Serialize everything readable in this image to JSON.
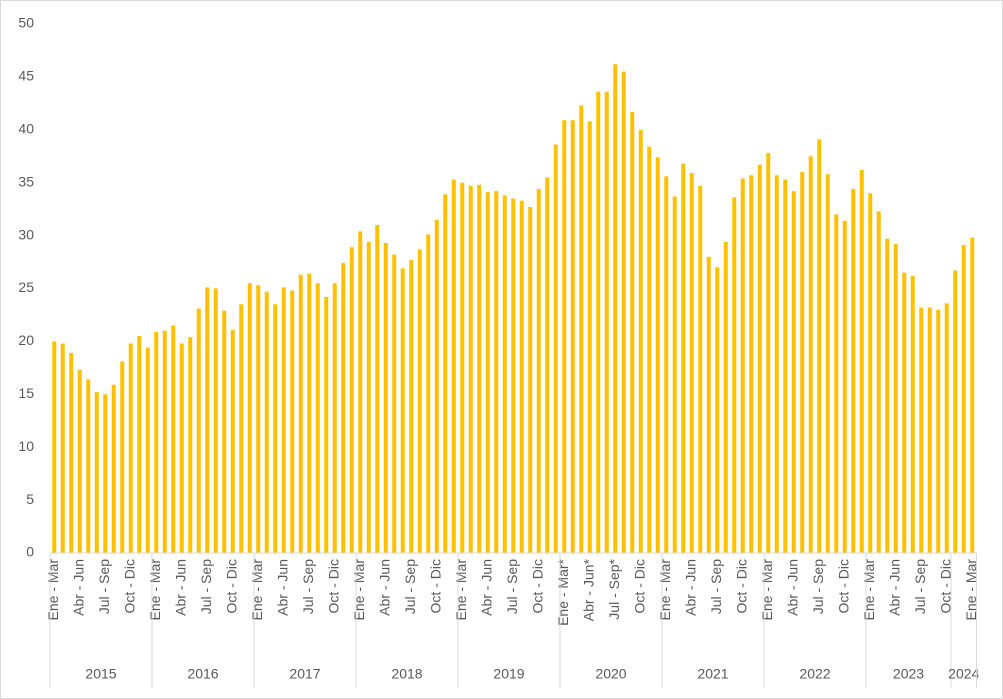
{
  "chart_data": {
    "type": "bar",
    "color": "#FFC000",
    "ylim": [
      0,
      50
    ],
    "yticks": [
      0,
      5,
      10,
      15,
      20,
      25,
      30,
      35,
      40,
      45,
      50
    ],
    "categories": [
      "Ene - Mar",
      null,
      null,
      "Abr - Jun",
      null,
      null,
      "Jul - Sep",
      null,
      null,
      "Oct - Dic",
      null,
      null,
      "Ene - Mar",
      null,
      null,
      "Abr - Jun",
      null,
      null,
      "Jul - Sep",
      null,
      null,
      "Oct - Dic",
      null,
      null,
      "Ene - Mar",
      null,
      null,
      "Abr - Jun",
      null,
      null,
      "Jul - Sep",
      null,
      null,
      "Oct - Dic",
      null,
      null,
      "Ene - Mar",
      null,
      null,
      "Abr - Jun",
      null,
      null,
      "Jul - Sep",
      null,
      null,
      "Oct - Dic",
      null,
      null,
      "Ene - Mar",
      null,
      null,
      "Abr - Jun",
      null,
      null,
      "Jul - Sep",
      null,
      null,
      "Oct - Dic",
      null,
      null,
      "Ene - Mar*",
      null,
      null,
      "Abr - Jun*",
      null,
      null,
      "Jul - Sep*",
      null,
      null,
      "Oct - Dic",
      null,
      null,
      "Ene - Mar",
      null,
      null,
      "Abr - Jun",
      null,
      null,
      "Jul - Sep",
      null,
      null,
      "Oct - Dic",
      null,
      null,
      "Ene - Mar",
      null,
      null,
      "Abr - Jun",
      null,
      null,
      "Jul - Sep",
      null,
      null,
      "Oct - Dic",
      null,
      null,
      "Ene - Mar",
      null,
      null,
      "Abr - Jun",
      null,
      null,
      "Jul - Sep",
      null,
      null,
      "Oct - Dic",
      null,
      null,
      "Ene - Mar"
    ],
    "values": [
      20,
      19.8,
      18.9,
      17.3,
      16.4,
      15.2,
      15.0,
      15.9,
      18.1,
      19.8,
      20.5,
      19.4,
      20.9,
      21.0,
      21.5,
      19.8,
      20.4,
      23.1,
      25.1,
      25.0,
      22.9,
      21.1,
      23.5,
      25.5,
      25.3,
      24.7,
      23.5,
      25.1,
      24.8,
      26.3,
      26.4,
      25.5,
      24.2,
      25.5,
      27.4,
      28.9,
      30.4,
      29.4,
      31.0,
      29.3,
      28.2,
      26.9,
      27.7,
      28.7,
      30.1,
      31.5,
      33.9,
      35.3,
      35.0,
      34.7,
      34.8,
      34.1,
      34.2,
      33.8,
      33.5,
      33.3,
      32.7,
      34.4,
      35.5,
      38.6,
      40.9,
      40.9,
      42.3,
      40.8,
      43.6,
      43.6,
      46.2,
      45.5,
      41.7,
      40.0,
      38.4,
      37.4,
      35.6,
      33.7,
      36.8,
      35.9,
      34.7,
      28.0,
      27.0,
      29.4,
      33.6,
      35.4,
      35.7,
      36.7,
      37.8,
      35.7,
      35.3,
      34.2,
      36.0,
      37.5,
      39.1,
      35.8,
      32.0,
      31.4,
      34.4,
      36.2,
      34.0,
      32.3,
      29.7,
      29.2,
      26.5,
      26.2,
      23.2,
      23.2,
      23.0,
      23.6,
      26.7,
      29.1,
      29.8
    ],
    "groups": [
      {
        "label": "2015",
        "size": 12
      },
      {
        "label": "2016",
        "size": 12
      },
      {
        "label": "2017",
        "size": 12
      },
      {
        "label": "2018",
        "size": 12
      },
      {
        "label": "2019",
        "size": 12
      },
      {
        "label": "2020",
        "size": 12
      },
      {
        "label": "2021",
        "size": 12
      },
      {
        "label": "2022",
        "size": 12
      },
      {
        "label": "2023",
        "size": 10
      },
      {
        "label": "2024",
        "size": 3
      }
    ]
  }
}
